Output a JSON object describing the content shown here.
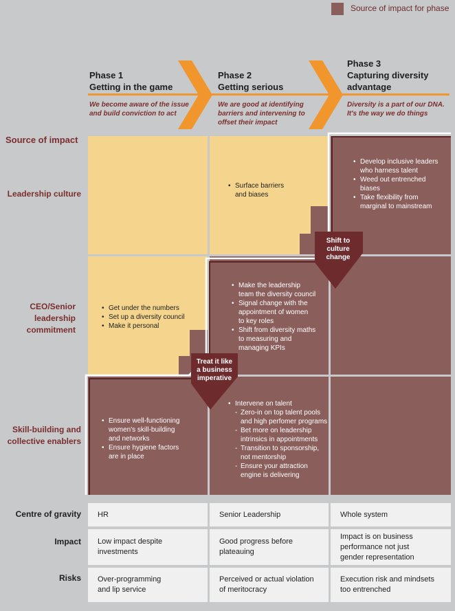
{
  "legend": {
    "label": "Source of impact for phase",
    "color": "#8a5e5b"
  },
  "phases": [
    {
      "title_line1": "Phase 1",
      "title_line2": "Getting in the game",
      "title_line3": "",
      "desc": [
        "We become aware of the issue",
        "and build conviction to act"
      ]
    },
    {
      "title_line1": "Phase 2",
      "title_line2": "Getting serious",
      "title_line3": "",
      "desc": [
        "We are good at identifying",
        "barriers and intervening to",
        "offset their impact"
      ]
    },
    {
      "title_line1": "Phase 3",
      "title_line2": "Capturing diversity",
      "title_line3": "advantage",
      "desc": [
        "Diversity is a part of our DNA.",
        "It's the way we do things"
      ]
    }
  ],
  "source_of_impact_heading": "Source of impact",
  "rows": [
    {
      "label": [
        "Leadership culture"
      ]
    },
    {
      "label": [
        "CEO/Senior",
        "leadership",
        "commitment"
      ]
    },
    {
      "label": [
        "Skill-building and",
        "collective enablers"
      ]
    }
  ],
  "cells": {
    "leadership_p2": [
      "Surface barriers",
      "and biases"
    ],
    "leadership_p3": [
      "Develop inclusive leaders",
      "who harness talent",
      "Weed out entrenched",
      "biases",
      "Take flexibility from",
      "marginal to mainstream"
    ],
    "ceo_p1": [
      "Get under the numbers",
      "Set up a diversity council",
      "Make it personal"
    ],
    "ceo_p2": [
      "Make the leadership",
      "team the diversity council",
      "Signal change with the",
      "appointment of women",
      "to key roles",
      "Shift from diversity maths",
      "to measuring and",
      "managing KPIs"
    ],
    "skill_p1": [
      "Ensure well-functioning",
      "women's skill-building",
      "and networks",
      "Ensure hygiene factors",
      "are in place"
    ],
    "skill_p2_head": "Intervene on talent",
    "skill_p2_sub": [
      [
        "Zero-in on top talent pools",
        "and high perfomer programs"
      ],
      [
        "Bet more on leadership",
        "intrinsics in appointments"
      ],
      [
        "Transition to sponsorship,",
        "not mentorship"
      ],
      [
        "Ensure your attraction",
        "engine is delivering"
      ]
    ]
  },
  "badges": {
    "shift": [
      "Shift to",
      "culture",
      "change"
    ],
    "treat": [
      "Treat it like",
      "a business",
      "imperative"
    ]
  },
  "bottom": [
    {
      "label": "Centre of gravity",
      "values": [
        [
          "HR"
        ],
        [
          "Senior Leadership"
        ],
        [
          "Whole system"
        ]
      ]
    },
    {
      "label": "Impact",
      "values": [
        [
          "Low impact despite",
          "investments"
        ],
        [
          "Good progress before",
          "plateauing"
        ],
        [
          "Impact is on business",
          "performance not just",
          "gender representation"
        ]
      ]
    },
    {
      "label": "Risks",
      "values": [
        [
          "Over-programming",
          "and lip service"
        ],
        [
          "Perceived or actual violation",
          "of meritocracy"
        ],
        [
          "Execution risk and mindsets",
          "too entrenched"
        ]
      ]
    }
  ],
  "colors": {
    "brown": "#8a5e5b",
    "yellow": "#f5d58e",
    "orange": "#f0962d",
    "dark_badge": "#6e2b2e",
    "label_red": "#7a2e2e"
  }
}
